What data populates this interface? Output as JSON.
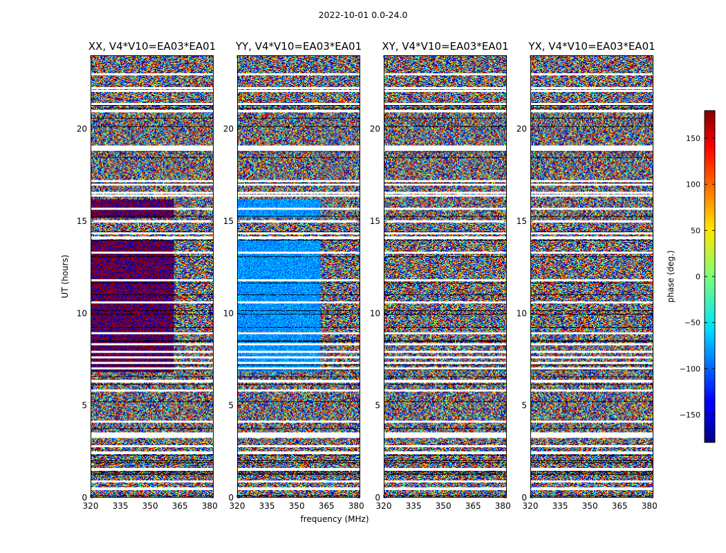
{
  "suptitle": "2022-10-01 0.0-24.0",
  "chart_data": {
    "type": "heatmap",
    "xlabel": "frequency (MHz)",
    "ylabel": "UT (hours)",
    "xlim": [
      320,
      382
    ],
    "ylim": [
      0,
      24
    ],
    "xticks": [
      320,
      335,
      350,
      365,
      380
    ],
    "yticks": [
      0,
      5,
      10,
      15,
      20
    ],
    "colorbar": {
      "label": "phase (deg.)",
      "colormap": "jet",
      "range": [
        -180,
        180
      ],
      "ticks": [
        150,
        100,
        50,
        0,
        -50,
        -100,
        -150
      ],
      "tick_labels": [
        "150",
        "100",
        "50",
        "0",
        "−50",
        "−100",
        "−150"
      ]
    },
    "panels": [
      {
        "title": "XX, V4*V10=EA03*EA01",
        "pattern": "mostly random phase noise; strong coherent red/dark-red phase (~+170 to -170 deg) at 320-362 MHz from ~7 to 14 UT and ~15-16 UT; flagged (white) rows near 1.5, 3.3, 7-8, 14, 16.5-17, 19, 22 UT"
      },
      {
        "title": "YY, V4*V10=EA03*EA01",
        "pattern": "mostly random phase noise; coherent blue/cyan phase (~-90 to -120 deg) at 320-362 MHz from ~7 to 14 UT and ~15-16 UT"
      },
      {
        "title": "XY, V4*V10=EA03*EA01",
        "pattern": "random phase noise throughout with fringing bands; same flagged rows"
      },
      {
        "title": "YX, V4*V10=EA03*EA01",
        "pattern": "random phase noise throughout with fringing bands; same flagged rows"
      }
    ],
    "flagged_hours": [
      0.45,
      0.85,
      1.5,
      2.4,
      2.75,
      3.3,
      3.45,
      4.1,
      5.8,
      6.3,
      7.0,
      7.3,
      7.6,
      7.9,
      8.3,
      8.9,
      10.6,
      11.8,
      13.3,
      14.1,
      14.35,
      15.0,
      15.7,
      16.4,
      16.55,
      17.0,
      17.2,
      18.9,
      19.05,
      21.0,
      21.4,
      22.1,
      22.25,
      23.0
    ]
  }
}
